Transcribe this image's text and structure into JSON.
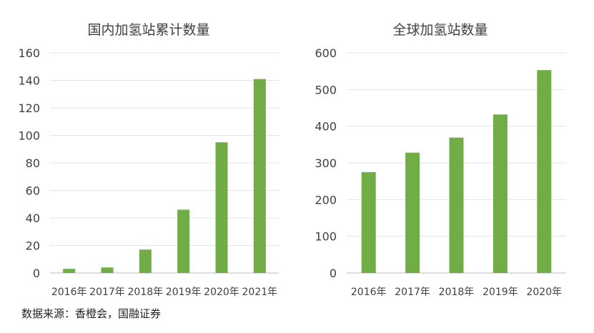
{
  "chart_data": [
    {
      "type": "bar",
      "title": "国内加氢站累计数量",
      "categories": [
        "2016年",
        "2017年",
        "2018年",
        "2019年",
        "2020年",
        "2021年"
      ],
      "values": [
        3,
        4,
        17,
        46,
        95,
        141
      ],
      "ylim": [
        0,
        160
      ],
      "yticks": [
        0,
        20,
        40,
        60,
        80,
        100,
        120,
        140,
        160
      ],
      "grid": true,
      "color": "#70ad47"
    },
    {
      "type": "bar",
      "title": "全球加氢站数量",
      "categories": [
        "2016年",
        "2017年",
        "2018年",
        "2019年",
        "2020年"
      ],
      "values": [
        275,
        328,
        369,
        432,
        553
      ],
      "ylim": [
        0,
        600
      ],
      "yticks": [
        0,
        100,
        200,
        300,
        400,
        500,
        600
      ],
      "grid": true,
      "color": "#70ad47"
    }
  ],
  "source": "数据来源：香橙会，国融证券"
}
